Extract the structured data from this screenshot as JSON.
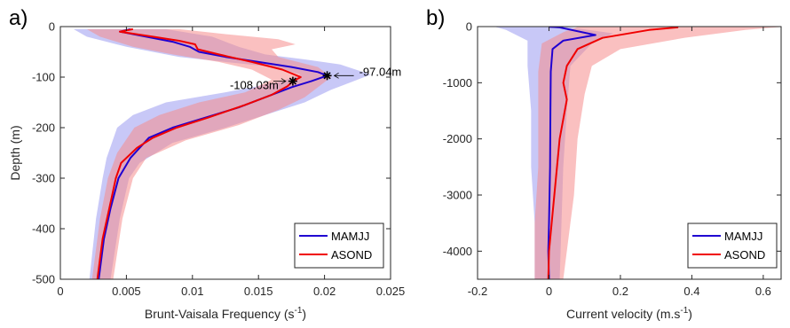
{
  "chart_data": [
    {
      "panel_label": "a)",
      "type": "line",
      "xlabel": "Brunt-Vaisala Frequency (s",
      "xlabel_sup": "-1",
      "xlabel_end": ")",
      "ylabel": "Depth (m)",
      "xlim": [
        0,
        0.025
      ],
      "ylim": [
        -500,
        0
      ],
      "xticks": [
        0,
        0.005,
        0.01,
        0.015,
        0.02,
        0.025
      ],
      "xticklabels": [
        "0",
        "0.005",
        "0.01",
        "0.015",
        "0.02",
        "0.025"
      ],
      "yticks": [
        0,
        -100,
        -200,
        -300,
        -400,
        -500
      ],
      "yticklabels": [
        "0",
        "-100",
        "-200",
        "-300",
        "-400",
        "-500"
      ],
      "legend_position": "bottom-right",
      "series": [
        {
          "name": "MAMJJ",
          "color": "#1f00d1",
          "band_color": "#9b9bf0",
          "points": [
            [
              0.0053,
              -5
            ],
            [
              0.0045,
              -10
            ],
            [
              0.0065,
              -20
            ],
            [
              0.0085,
              -30
            ],
            [
              0.0098,
              -40
            ],
            [
              0.0105,
              -50
            ],
            [
              0.0125,
              -60
            ],
            [
              0.015,
              -70
            ],
            [
              0.0175,
              -80
            ],
            [
              0.0195,
              -90
            ],
            [
              0.0202,
              -97
            ],
            [
              0.019,
              -108
            ],
            [
              0.0175,
              -120
            ],
            [
              0.0155,
              -140
            ],
            [
              0.0135,
              -160
            ],
            [
              0.011,
              -180
            ],
            [
              0.0085,
              -200
            ],
            [
              0.0067,
              -220
            ],
            [
              0.0053,
              -260
            ],
            [
              0.0044,
              -300
            ],
            [
              0.0038,
              -360
            ],
            [
              0.0033,
              -420
            ],
            [
              0.0029,
              -500
            ]
          ],
          "band_low": [
            [
              0.001,
              -5
            ],
            [
              0.002,
              -20
            ],
            [
              0.005,
              -40
            ],
            [
              0.009,
              -60
            ],
            [
              0.0125,
              -70
            ],
            [
              0.0162,
              -80
            ],
            [
              0.0182,
              -95
            ],
            [
              0.0165,
              -110
            ],
            [
              0.0125,
              -130
            ],
            [
              0.008,
              -150
            ],
            [
              0.0055,
              -175
            ],
            [
              0.0043,
              -200
            ],
            [
              0.0035,
              -260
            ],
            [
              0.0032,
              -300
            ],
            [
              0.0027,
              -380
            ],
            [
              0.0022,
              -500
            ]
          ],
          "band_high": [
            [
              0.008,
              -5
            ],
            [
              0.0115,
              -20
            ],
            [
              0.0135,
              -40
            ],
            [
              0.0155,
              -55
            ],
            [
              0.0185,
              -65
            ],
            [
              0.0212,
              -75
            ],
            [
              0.0235,
              -95
            ],
            [
              0.022,
              -110
            ],
            [
              0.0205,
              -125
            ],
            [
              0.0185,
              -150
            ],
            [
              0.0155,
              -175
            ],
            [
              0.0125,
              -200
            ],
            [
              0.0085,
              -230
            ],
            [
              0.006,
              -270
            ],
            [
              0.0052,
              -300
            ],
            [
              0.0045,
              -380
            ],
            [
              0.0038,
              -500
            ]
          ]
        },
        {
          "name": "ASOND",
          "color": "#f00000",
          "band_color": "#f58d8d",
          "points": [
            [
              0.0055,
              -5
            ],
            [
              0.0045,
              -10
            ],
            [
              0.007,
              -20
            ],
            [
              0.009,
              -28
            ],
            [
              0.0102,
              -35
            ],
            [
              0.0104,
              -45
            ],
            [
              0.012,
              -55
            ],
            [
              0.0145,
              -70
            ],
            [
              0.0168,
              -85
            ],
            [
              0.0182,
              -100
            ],
            [
              0.0176,
              -108
            ],
            [
              0.0172,
              -118
            ],
            [
              0.016,
              -135
            ],
            [
              0.014,
              -155
            ],
            [
              0.0112,
              -180
            ],
            [
              0.0088,
              -200
            ],
            [
              0.007,
              -220
            ],
            [
              0.0058,
              -240
            ],
            [
              0.0046,
              -270
            ],
            [
              0.0042,
              -300
            ],
            [
              0.0037,
              -360
            ],
            [
              0.0032,
              -420
            ],
            [
              0.0028,
              -500
            ]
          ],
          "band_low": [
            [
              0.002,
              -5
            ],
            [
              0.003,
              -20
            ],
            [
              0.0055,
              -40
            ],
            [
              0.0085,
              -55
            ],
            [
              0.012,
              -70
            ],
            [
              0.0145,
              -85
            ],
            [
              0.016,
              -105
            ],
            [
              0.014,
              -130
            ],
            [
              0.0105,
              -150
            ],
            [
              0.0075,
              -175
            ],
            [
              0.0056,
              -200
            ],
            [
              0.0043,
              -250
            ],
            [
              0.0036,
              -300
            ],
            [
              0.003,
              -380
            ],
            [
              0.0024,
              -500
            ]
          ],
          "band_high": [
            [
              0.009,
              -5
            ],
            [
              0.0125,
              -15
            ],
            [
              0.0165,
              -25
            ],
            [
              0.0178,
              -35
            ],
            [
              0.016,
              -45
            ],
            [
              0.0165,
              -60
            ],
            [
              0.0195,
              -80
            ],
            [
              0.0205,
              -100
            ],
            [
              0.0195,
              -120
            ],
            [
              0.0185,
              -140
            ],
            [
              0.0165,
              -165
            ],
            [
              0.0135,
              -195
            ],
            [
              0.0095,
              -225
            ],
            [
              0.0065,
              -260
            ],
            [
              0.0055,
              -300
            ],
            [
              0.0047,
              -380
            ],
            [
              0.004,
              -500
            ]
          ]
        }
      ],
      "annotations": [
        {
          "text": "-97.04m",
          "x": 0.0202,
          "y": -97.04
        },
        {
          "text": "-108.03m",
          "x": 0.0176,
          "y": -108.03
        }
      ]
    },
    {
      "panel_label": "b)",
      "type": "line",
      "xlabel": "Current velocity (m.s",
      "xlabel_sup": "-1",
      "xlabel_end": ")",
      "ylabel": "",
      "xlim": [
        -0.2,
        0.65
      ],
      "ylim": [
        -4500,
        0
      ],
      "xticks": [
        -0.2,
        0,
        0.2,
        0.4,
        0.6
      ],
      "xticklabels": [
        "-0.2",
        "0",
        "0.2",
        "0.4",
        "0.6"
      ],
      "yticks": [
        0,
        -1000,
        -2000,
        -3000,
        -4000
      ],
      "yticklabels": [
        "0",
        "-1000",
        "-2000",
        "-3000",
        "-4000"
      ],
      "legend_position": "bottom-right",
      "series": [
        {
          "name": "MAMJJ",
          "color": "#1f00d1",
          "band_color": "#9b9bf0",
          "points": [
            [
              0.0,
              -5
            ],
            [
              0.015,
              -8
            ],
            [
              0.03,
              -15
            ],
            [
              0.13,
              -150
            ],
            [
              0.04,
              -250
            ],
            [
              0.01,
              -400
            ],
            [
              0.005,
              -800
            ],
            [
              0.004,
              -1500
            ],
            [
              0.003,
              -2500
            ],
            [
              0.0,
              -3500
            ],
            [
              -0.002,
              -4000
            ],
            [
              0.0,
              -4500
            ]
          ],
          "band_low": [
            [
              -0.15,
              -5
            ],
            [
              -0.12,
              -60
            ],
            [
              -0.06,
              -250
            ],
            [
              -0.06,
              -700
            ],
            [
              -0.05,
              -1500
            ],
            [
              -0.05,
              -2500
            ],
            [
              -0.04,
              -3500
            ],
            [
              -0.04,
              -4500
            ]
          ],
          "band_high": [
            [
              0.05,
              -5
            ],
            [
              0.18,
              -120
            ],
            [
              0.12,
              -300
            ],
            [
              0.06,
              -700
            ],
            [
              0.05,
              -1500
            ],
            [
              0.04,
              -2500
            ],
            [
              0.035,
              -3500
            ],
            [
              0.03,
              -4500
            ]
          ]
        },
        {
          "name": "ASOND",
          "color": "#f00000",
          "band_color": "#f58d8d",
          "points": [
            [
              0.35,
              -5
            ],
            [
              0.36,
              -15
            ],
            [
              0.28,
              -60
            ],
            [
              0.15,
              -200
            ],
            [
              0.08,
              -400
            ],
            [
              0.05,
              -700
            ],
            [
              0.04,
              -1000
            ],
            [
              0.05,
              -1300
            ],
            [
              0.03,
              -2000
            ],
            [
              0.015,
              -3000
            ],
            [
              0.0,
              -4000
            ],
            [
              -0.002,
              -4500
            ]
          ],
          "band_low": [
            [
              0.08,
              -5
            ],
            [
              0.04,
              -100
            ],
            [
              -0.02,
              -300
            ],
            [
              -0.03,
              -800
            ],
            [
              -0.03,
              -1500
            ],
            [
              -0.03,
              -2500
            ],
            [
              -0.04,
              -3500
            ],
            [
              -0.04,
              -4500
            ]
          ],
          "band_high": [
            [
              0.65,
              -5
            ],
            [
              0.55,
              -60
            ],
            [
              0.38,
              -200
            ],
            [
              0.2,
              -400
            ],
            [
              0.12,
              -700
            ],
            [
              0.1,
              -1200
            ],
            [
              0.08,
              -2000
            ],
            [
              0.07,
              -3000
            ],
            [
              0.05,
              -4000
            ],
            [
              0.04,
              -4500
            ]
          ]
        }
      ],
      "annotations": []
    }
  ]
}
